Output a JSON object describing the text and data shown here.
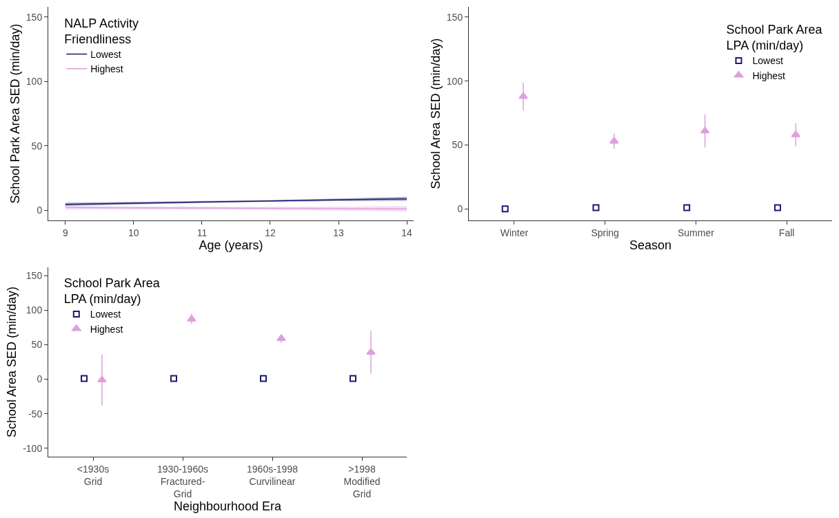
{
  "chart_data": [
    {
      "type": "line",
      "xlabel": "Age (years)",
      "ylabel": "School Park Area SED (min/day)",
      "legend_title": "NALP Activity\nFriendliness",
      "x": [
        9,
        10,
        11,
        12,
        13,
        14
      ],
      "xlim": [
        8.75,
        14.1
      ],
      "xticks": [
        9,
        10,
        11,
        12,
        13,
        14
      ],
      "ylim": [
        -8,
        158
      ],
      "yticks": [
        0,
        50,
        100,
        150
      ],
      "grid": false,
      "legend": "top left",
      "marker": "none",
      "line_style": "solid",
      "series": [
        {
          "name": "Lowest",
          "color": "#191970",
          "values": [
            4.5,
            5.4,
            6.3,
            7.1,
            8.0,
            8.8
          ],
          "lower": [
            3.2,
            4.4,
            5.5,
            6.4,
            7.0,
            7.2
          ],
          "upper": [
            5.8,
            6.4,
            7.1,
            7.8,
            9.0,
            10.4
          ]
        },
        {
          "name": "Highest",
          "color": "#dda0dd",
          "values": [
            2,
            1.8,
            1.6,
            1.4,
            1.2,
            1
          ],
          "lower": [
            0.5,
            0.6,
            0.5,
            0.2,
            -0.4,
            -1.2
          ],
          "upper": [
            3.2,
            2.9,
            2.7,
            2.6,
            2.8,
            3.2
          ]
        }
      ]
    },
    {
      "type": "scatter",
      "xlabel": "Season",
      "ylabel": "School Area SED (min/day)",
      "legend_title": "School Park Area\nLPA (min/day)",
      "categories": [
        "Winter",
        "Spring",
        "Summer",
        "Fall"
      ],
      "ylim": [
        -9,
        158
      ],
      "yticks": [
        0,
        50,
        100,
        150
      ],
      "grid": false,
      "legend": "top right",
      "series": [
        {
          "name": "Lowest",
          "color": "#191970",
          "marker": "square",
          "values": [
            0,
            1,
            1,
            1
          ]
        },
        {
          "name": "Highest",
          "color": "#dda0dd",
          "marker": "triangle",
          "values": [
            88,
            53,
            61,
            58
          ],
          "errors": [
            [
              77,
              99
            ],
            [
              47,
              59
            ],
            [
              48,
              74
            ],
            [
              49,
              67
            ]
          ]
        }
      ]
    },
    {
      "type": "scatter",
      "xlabel": "Neighbourhood Era",
      "ylabel": "School Area SED (min/day)",
      "legend_title": "School Park Area\nLPA (min/day)",
      "categories": [
        "<1930s\nGrid",
        "1930-1960s\nFractured-\nGrid",
        "1960s-1998\nCurvilinear",
        ">1998\nModified\nGrid"
      ],
      "ylim": [
        -112,
        162
      ],
      "yticks": [
        -100,
        -50,
        0,
        50,
        100,
        150
      ],
      "grid": false,
      "legend": "top left",
      "series": [
        {
          "name": "Lowest",
          "color": "#191970",
          "marker": "square",
          "values": [
            1,
            1,
            1,
            1
          ]
        },
        {
          "name": "Highest",
          "color": "#dda0dd",
          "marker": "triangle",
          "values": [
            -1,
            87,
            59,
            39
          ],
          "errors": [
            [
              -38,
              36
            ],
            [
              80,
              95
            ],
            [
              53,
              65
            ],
            [
              8,
              70
            ]
          ]
        }
      ]
    }
  ]
}
